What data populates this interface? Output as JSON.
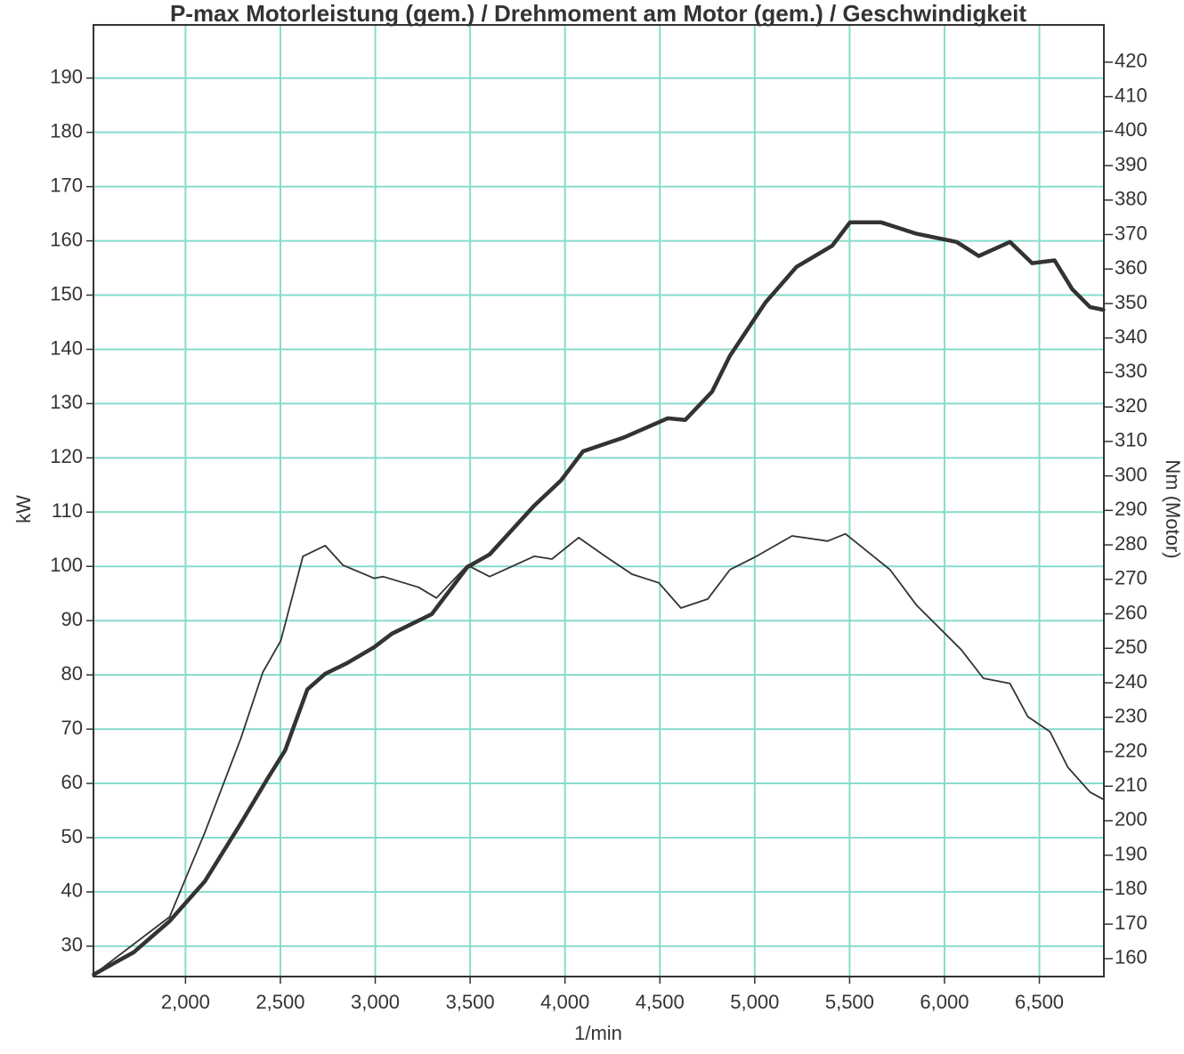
{
  "chart_data": {
    "type": "line",
    "title": "P-max Motorleistung (gem.) / Drehmoment am Motor (gem.) / Geschwindigkeit",
    "x_label": "1/min",
    "y_label": "kW",
    "y2_label": "Nm (Motor)",
    "grid": true,
    "grid_color": "#86dccb",
    "xlim": [
      1515,
      6840
    ],
    "ylim": [
      24.4,
      199.8
    ],
    "y2lim": [
      154.8,
      430.8
    ],
    "xticks": [
      {
        "value": 2000,
        "label": "2,000"
      },
      {
        "value": 2500,
        "label": "2,500"
      },
      {
        "value": 3000,
        "label": "3,000"
      },
      {
        "value": 3500,
        "label": "3,500"
      },
      {
        "value": 4000,
        "label": "4,000"
      },
      {
        "value": 4500,
        "label": "4,500"
      },
      {
        "value": 5000,
        "label": "5,000"
      },
      {
        "value": 5500,
        "label": "5,500"
      },
      {
        "value": 6000,
        "label": "6,000"
      },
      {
        "value": 6500,
        "label": "6,500"
      }
    ],
    "yticks": [
      30,
      40,
      50,
      60,
      70,
      80,
      90,
      100,
      110,
      120,
      130,
      140,
      150,
      160,
      170,
      180,
      190
    ],
    "y2ticks": [
      160,
      170,
      180,
      190,
      200,
      210,
      220,
      230,
      240,
      250,
      260,
      270,
      280,
      290,
      300,
      310,
      320,
      330,
      340,
      350,
      360,
      370,
      380,
      390,
      400,
      410,
      420
    ],
    "series": [
      {
        "color": "#333333",
        "width": 4.5,
        "x": [
          1517,
          1728,
          1916,
          2103,
          2291,
          2431,
          2525,
          2642,
          2736,
          2853,
          2994,
          3088,
          3298,
          3486,
          3603,
          3838,
          3978,
          4095,
          4306,
          4541,
          4634,
          4775,
          4869,
          5056,
          5220,
          5408,
          5502,
          5666,
          5853,
          6064,
          6181,
          6345,
          6462,
          6580,
          6673,
          6767,
          6837
        ],
        "values": [
          24.8,
          28.9,
          34.6,
          42,
          52.6,
          60.8,
          66.1,
          77.3,
          80.2,
          82.2,
          85.1,
          87.6,
          91.2,
          99.9,
          102.2,
          111.2,
          115.8,
          121.2,
          123.7,
          127.3,
          127,
          132.2,
          138.8,
          148.6,
          155.2,
          159.1,
          163.4,
          163.4,
          161.3,
          159.8,
          157.2,
          159.8,
          155.9,
          156.4,
          151.1,
          147.8,
          147.3
        ]
      },
      {
        "color": "#333333",
        "width": 1.8,
        "axis": "y2",
        "x": [
          1517,
          1916,
          2103,
          2291,
          2408,
          2502,
          2619,
          2736,
          2830,
          2994,
          3041,
          3228,
          3322,
          3486,
          3603,
          3838,
          3931,
          4072,
          4212,
          4353,
          4494,
          4611,
          4752,
          4869,
          5009,
          5197,
          5384,
          5478,
          5713,
          5853,
          6088,
          6205,
          6345,
          6439,
          6556,
          6650,
          6767,
          6837
        ],
        "values": [
          155.4,
          172.1,
          196.7,
          223.8,
          243.1,
          252.2,
          276.7,
          279.8,
          274.1,
          270.3,
          270.8,
          267.7,
          264.6,
          274.1,
          270.8,
          276.7,
          275.9,
          282.1,
          276.7,
          271.5,
          269,
          261.7,
          264.3,
          272.8,
          276.7,
          282.6,
          281.1,
          283.2,
          272.8,
          262.5,
          249.6,
          241.3,
          239.8,
          230.2,
          225.8,
          215.5,
          208.3,
          206.2
        ]
      }
    ]
  }
}
